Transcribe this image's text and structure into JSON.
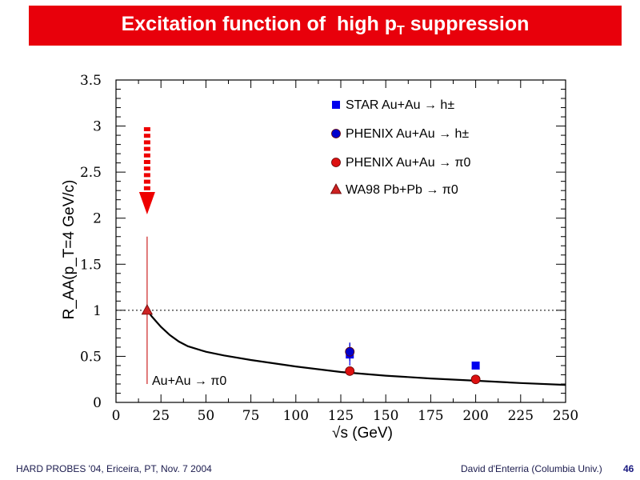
{
  "slide": {
    "title_main": "Excitation function of  high p",
    "title_sub": "T",
    "title_end": " suppression",
    "colors": {
      "title_bar": "#e8000b",
      "star": "#0000ee",
      "phenix_h": "#0000cc",
      "phenix_pi0": "#dd1111",
      "wa98": "#cc2222"
    }
  },
  "footer": {
    "left": "HARD PROBES '04, Ericeira, PT, Nov. 7 2004",
    "right": "David d'Enterria (Columbia Univ.)",
    "page": "46"
  },
  "chart_data": {
    "type": "scatter",
    "xlabel": "√s (GeV)",
    "ylabel": "R_AA(p_T=4 GeV/c)",
    "xlim": [
      0,
      250
    ],
    "ylim": [
      0,
      3.5
    ],
    "xticks": [
      "0",
      "25",
      "50",
      "75",
      "100",
      "125",
      "150",
      "175",
      "200",
      "225",
      "250"
    ],
    "yticks": [
      "0",
      "0.5",
      "1",
      "1.5",
      "2",
      "2.5",
      "3",
      "3.5"
    ],
    "reference_line": 1,
    "series": [
      {
        "name": "STAR Au+Au → h±",
        "marker": "square",
        "color": "#0000ee",
        "points": [
          {
            "x": 130,
            "y": 0.52,
            "err": 0.12
          },
          {
            "x": 200,
            "y": 0.4,
            "err": 0.03
          }
        ]
      },
      {
        "name": "PHENIX Au+Au → h±",
        "marker": "circle",
        "color": "#0000cc",
        "points": [
          {
            "x": 130,
            "y": 0.55,
            "err": 0.1
          }
        ]
      },
      {
        "name": "PHENIX Au+Au → π0",
        "marker": "circle",
        "color": "#dd1111",
        "points": [
          {
            "x": 130,
            "y": 0.34,
            "err": 0.05
          },
          {
            "x": 200,
            "y": 0.25,
            "err": 0.02
          }
        ]
      },
      {
        "name": "WA98 Pb+Pb → π0",
        "marker": "triangle",
        "color": "#cc2222",
        "points": [
          {
            "x": 17.3,
            "y": 1.0,
            "err_low": 0.8,
            "err_high": 0.8
          }
        ]
      }
    ],
    "curve": {
      "label": "Au+Au → π0",
      "points": [
        [
          17.3,
          1.0
        ],
        [
          20,
          0.93
        ],
        [
          25,
          0.82
        ],
        [
          30,
          0.73
        ],
        [
          35,
          0.66
        ],
        [
          40,
          0.61
        ],
        [
          50,
          0.55
        ],
        [
          60,
          0.51
        ],
        [
          75,
          0.46
        ],
        [
          100,
          0.39
        ],
        [
          125,
          0.33
        ],
        [
          150,
          0.29
        ],
        [
          175,
          0.26
        ],
        [
          200,
          0.235
        ],
        [
          225,
          0.21
        ],
        [
          250,
          0.19
        ]
      ]
    },
    "annotation": "dashed red arrow pointing down onto the WA98 point"
  }
}
